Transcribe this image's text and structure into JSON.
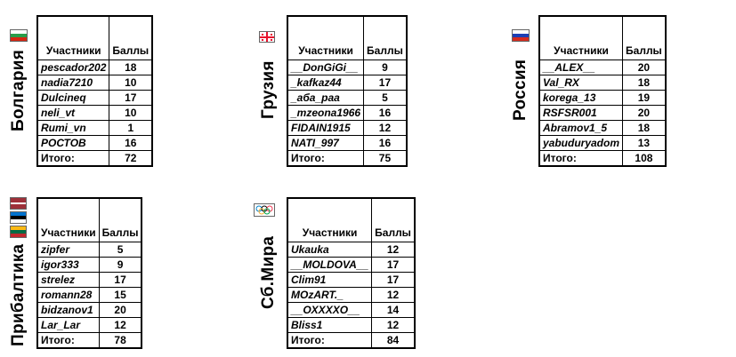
{
  "header": {
    "participants": "Участники",
    "points": "Баллы"
  },
  "total_label": "Итого:",
  "groups": [
    {
      "name": "Болгария",
      "flag": [
        "#ffffff",
        "#2a9d4a",
        "#d62612"
      ],
      "rows": [
        [
          "pescador202",
          "18"
        ],
        [
          "nadia7210",
          "10"
        ],
        [
          "Dulcineq",
          "17"
        ],
        [
          "neli_vt",
          "10"
        ],
        [
          "Rumi_vn",
          "1"
        ],
        [
          "РОСТОВ",
          "16"
        ]
      ],
      "total": "72"
    },
    {
      "name": "Грузия",
      "flag": "georgia",
      "rows": [
        [
          "__DonGiGi__",
          "9"
        ],
        [
          "_kafkaz44",
          "17"
        ],
        [
          "_аба_раа",
          "5"
        ],
        [
          "_mzeona1966",
          "16"
        ],
        [
          "FIDAIN1915",
          "12"
        ],
        [
          "NATI_997",
          "16"
        ]
      ],
      "total": "75"
    },
    {
      "name": "Россия",
      "flag": [
        "#ffffff",
        "#1c3fb5",
        "#d52b1e"
      ],
      "rows": [
        [
          "__ALEX__",
          "20"
        ],
        [
          "Val_RX",
          "18"
        ],
        [
          "korega_13",
          "19"
        ],
        [
          "RSFSR001",
          "20"
        ],
        [
          "Abramov1_5",
          "18"
        ],
        [
          "yabuduryadom",
          "13"
        ]
      ],
      "total": "108"
    },
    {
      "name": "Прибалтика",
      "flag": [
        "#9e3039",
        "#ffffff",
        "#9e3039"
      ],
      "rows": [
        [
          "zipfer",
          "5"
        ],
        [
          "igor333",
          "9"
        ],
        [
          "strelez",
          "17"
        ],
        [
          "romann28",
          "15"
        ],
        [
          "bidzanov1",
          "20"
        ],
        [
          "Lar_Lar",
          "12"
        ]
      ],
      "total": "78"
    },
    {
      "name": "Сб.Мира",
      "flag": "olympic",
      "rows": [
        [
          "Ukauka",
          "12"
        ],
        [
          "__MOLDOVA__",
          "17"
        ],
        [
          "Clim91",
          "17"
        ],
        [
          "MOzART._",
          "12"
        ],
        [
          "__OXXXXO__",
          "14"
        ],
        [
          "Bliss1",
          "12"
        ]
      ],
      "total": "84"
    }
  ]
}
